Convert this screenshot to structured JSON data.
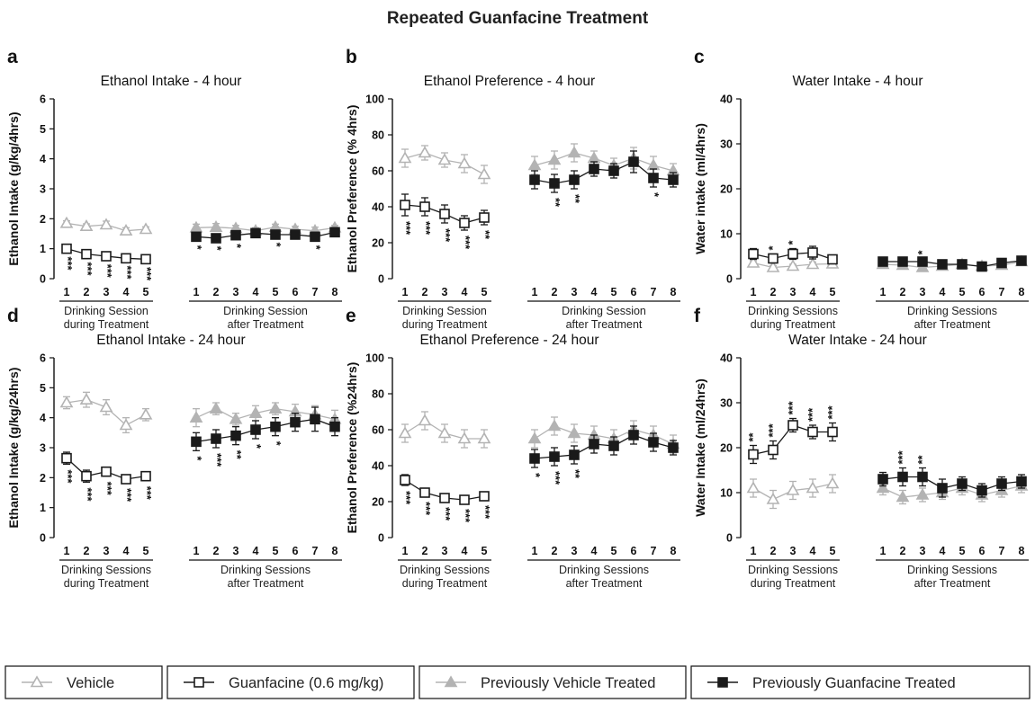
{
  "figure_title": "Repeated Guanfacine Treatment",
  "legend": [
    {
      "name": "Vehicle",
      "icon": "open-triangle-icon",
      "color": "#b3b3b3"
    },
    {
      "name": "Guanfacine (0.6 mg/kg)",
      "icon": "open-square-icon",
      "color": "#1a1a1a"
    },
    {
      "name": "Previously Vehicle Treated",
      "icon": "filled-triangle-icon",
      "color": "#b3b3b3"
    },
    {
      "name": "Previously Guanfacine Treated",
      "icon": "filled-square-icon",
      "color": "#1a1a1a"
    }
  ],
  "chart_data": [
    {
      "panel": "a",
      "type": "line",
      "title": "Ethanol Intake - 4 hour",
      "ylabel": "Ethanol Intake (g/kg/4hrs)",
      "ylim": [
        0,
        6
      ],
      "yticks": [
        0,
        1,
        2,
        3,
        4,
        5,
        6
      ],
      "group_labels": [
        [
          "Drinking Session",
          "during Treatment"
        ],
        [
          "Drinking Session",
          "after Treatment"
        ]
      ],
      "during": {
        "x": [
          "1",
          "2",
          "3",
          "4",
          "5"
        ],
        "series": [
          {
            "name": "Vehicle",
            "values": [
              1.85,
              1.75,
              1.8,
              1.6,
              1.65
            ],
            "err": [
              0.08,
              0.08,
              0.12,
              0.1,
              0.08
            ]
          },
          {
            "name": "Guanfacine (0.6 mg/kg)",
            "values": [
              1.0,
              0.82,
              0.75,
              0.68,
              0.65
            ],
            "err": [
              0.08,
              0.08,
              0.08,
              0.06,
              0.08
            ],
            "sig": [
              "***",
              "***",
              "***",
              "***",
              "***"
            ]
          }
        ]
      },
      "after": {
        "x": [
          "1",
          "2",
          "3",
          "4",
          "5",
          "6",
          "7",
          "8"
        ],
        "series": [
          {
            "name": "Previously Vehicle Treated",
            "values": [
              1.7,
              1.72,
              1.68,
              1.6,
              1.72,
              1.65,
              1.6,
              1.7
            ],
            "err": [
              0.12,
              0.12,
              0.1,
              0.1,
              0.1,
              0.1,
              0.12,
              0.08
            ]
          },
          {
            "name": "Previously Guanfacine Treated",
            "values": [
              1.4,
              1.35,
              1.45,
              1.52,
              1.47,
              1.47,
              1.4,
              1.55
            ],
            "err": [
              0.1,
              0.08,
              0.1,
              0.08,
              0.08,
              0.08,
              0.1,
              0.08
            ],
            "sig": [
              "*",
              "*",
              "*",
              "",
              "*",
              "",
              "*",
              ""
            ]
          }
        ]
      }
    },
    {
      "panel": "b",
      "type": "line",
      "title": "Ethanol Preference - 4 hour",
      "ylabel": "Ethanol Preference (% 4hrs)",
      "ylim": [
        0,
        100
      ],
      "yticks": [
        0,
        20,
        40,
        60,
        80,
        100
      ],
      "group_labels": [
        [
          "Drinking Session",
          "during Treatment"
        ],
        [
          "Drinking Session",
          "after Treatment"
        ]
      ],
      "during": {
        "x": [
          "1",
          "2",
          "3",
          "4",
          "5"
        ],
        "series": [
          {
            "name": "Vehicle",
            "values": [
              67,
              70,
              66,
              64,
              58
            ],
            "err": [
              5,
              4,
              4,
              5,
              5
            ]
          },
          {
            "name": "Guanfacine (0.6 mg/kg)",
            "values": [
              41,
              40,
              36,
              31,
              34
            ],
            "err": [
              6,
              5,
              5,
              4,
              4
            ],
            "sig": [
              "***",
              "***",
              "***",
              "***",
              "**"
            ]
          }
        ]
      },
      "after": {
        "x": [
          "1",
          "2",
          "3",
          "4",
          "5",
          "6",
          "7",
          "8"
        ],
        "series": [
          {
            "name": "Previously Vehicle Treated",
            "values": [
              63,
              66,
              70,
              67,
              63,
              67,
              63,
              60
            ],
            "err": [
              5,
              5,
              5,
              4,
              4,
              6,
              5,
              4
            ]
          },
          {
            "name": "Previously Guanfacine Treated",
            "values": [
              55,
              53,
              55,
              61,
              60,
              65,
              56,
              55
            ],
            "err": [
              5,
              5,
              5,
              4,
              4,
              6,
              5,
              4
            ],
            "sig": [
              "",
              "**",
              "**",
              "",
              "",
              "",
              "*",
              ""
            ]
          }
        ]
      }
    },
    {
      "panel": "c",
      "type": "line",
      "title": "Water Intake - 4 hour",
      "ylabel": "Water intake (ml/4hrs)",
      "ylim": [
        0,
        40
      ],
      "yticks": [
        0,
        10,
        20,
        30,
        40
      ],
      "group_labels": [
        [
          "Drinking Sessions",
          "during Treatment"
        ],
        [
          "Drinking Sessions",
          "after Treatment"
        ]
      ],
      "during": {
        "x": [
          "1",
          "2",
          "3",
          "4",
          "5"
        ],
        "series": [
          {
            "name": "Vehicle",
            "values": [
              3.5,
              2.5,
              2.8,
              3.2,
              3.3
            ],
            "err": [
              0.5,
              0.4,
              0.4,
              0.5,
              0.4
            ]
          },
          {
            "name": "Guanfacine (0.6 mg/kg)",
            "values": [
              5.5,
              4.5,
              5.5,
              5.8,
              4.3
            ],
            "err": [
              1.2,
              1.0,
              1.2,
              1.4,
              0.5
            ],
            "sig_above": [
              "",
              "*",
              "*",
              "",
              ""
            ]
          }
        ]
      },
      "after": {
        "x": [
          "1",
          "2",
          "3",
          "4",
          "5",
          "6",
          "7",
          "8"
        ],
        "series": [
          {
            "name": "Previously Vehicle Treated",
            "values": [
              3.2,
              3.0,
              2.5,
              2.8,
              3.2,
              2.8,
              3.0,
              3.8
            ],
            "err": [
              0.5,
              0.4,
              0.4,
              0.4,
              0.4,
              0.4,
              0.4,
              0.4
            ]
          },
          {
            "name": "Previously Guanfacine Treated",
            "values": [
              3.8,
              3.8,
              3.8,
              3.2,
              3.2,
              2.7,
              3.5,
              4.0
            ],
            "err": [
              0.5,
              0.6,
              0.7,
              0.4,
              0.4,
              0.4,
              0.4,
              0.4
            ],
            "sig_above": [
              "",
              "",
              "*",
              "",
              "",
              "",
              "",
              ""
            ]
          }
        ]
      }
    },
    {
      "panel": "d",
      "type": "line",
      "title": "Ethanol Intake - 24 hour",
      "ylabel": "Ethanol Intake (g/kg/24hrs)",
      "ylim": [
        0,
        6
      ],
      "yticks": [
        0,
        1,
        2,
        3,
        4,
        5,
        6
      ],
      "group_labels": [
        [
          "Drinking Sessions",
          "during Treatment"
        ],
        [
          "Drinking Sessions",
          "after Treatment"
        ]
      ],
      "during": {
        "x": [
          "1",
          "2",
          "3",
          "4",
          "5"
        ],
        "series": [
          {
            "name": "Vehicle",
            "values": [
              4.5,
              4.6,
              4.35,
              3.75,
              4.1
            ],
            "err": [
              0.2,
              0.25,
              0.25,
              0.25,
              0.2
            ]
          },
          {
            "name": "Guanfacine (0.6 mg/kg)",
            "values": [
              2.65,
              2.05,
              2.2,
              1.95,
              2.05
            ],
            "err": [
              0.2,
              0.2,
              0.15,
              0.12,
              0.15
            ],
            "sig": [
              "***",
              "***",
              "***",
              "***",
              "***"
            ]
          }
        ]
      },
      "after": {
        "x": [
          "1",
          "2",
          "3",
          "4",
          "5",
          "6",
          "7",
          "8"
        ],
        "series": [
          {
            "name": "Previously Vehicle Treated",
            "values": [
              4.0,
              4.3,
              3.95,
              4.15,
              4.3,
              4.2,
              4.1,
              3.95
            ],
            "err": [
              0.3,
              0.2,
              0.2,
              0.25,
              0.2,
              0.25,
              0.3,
              0.3
            ]
          },
          {
            "name": "Previously Guanfacine Treated",
            "values": [
              3.2,
              3.3,
              3.4,
              3.6,
              3.7,
              3.85,
              3.95,
              3.7
            ],
            "err": [
              0.3,
              0.3,
              0.3,
              0.3,
              0.3,
              0.3,
              0.4,
              0.3
            ],
            "sig": [
              "*",
              "***",
              "**",
              "*",
              "*",
              "",
              "",
              ""
            ]
          }
        ]
      }
    },
    {
      "panel": "e",
      "type": "line",
      "title": "Ethanol Preference - 24 hour",
      "ylabel": "Ethanol Preference (%24hrs)",
      "ylim": [
        0,
        100
      ],
      "yticks": [
        0,
        20,
        40,
        60,
        80,
        100
      ],
      "group_labels": [
        [
          "Drinking Sessions",
          "during Treatment"
        ],
        [
          "Drinking Sessions",
          "after Treatment"
        ]
      ],
      "during": {
        "x": [
          "1",
          "2",
          "3",
          "4",
          "5"
        ],
        "series": [
          {
            "name": "Vehicle",
            "values": [
              58,
              65,
              58,
              55,
              55
            ],
            "err": [
              5,
              5,
              5,
              5,
              5
            ]
          },
          {
            "name": "Guanfacine (0.6 mg/kg)",
            "values": [
              32,
              25,
              22,
              21,
              23
            ],
            "err": [
              3,
              2,
              2,
              2,
              2
            ],
            "sig": [
              "***",
              "***",
              "***",
              "***",
              "***"
            ]
          }
        ]
      },
      "after": {
        "x": [
          "1",
          "2",
          "3",
          "4",
          "5",
          "6",
          "7",
          "8"
        ],
        "series": [
          {
            "name": "Previously Vehicle Treated",
            "values": [
              55,
              62,
              58,
              57,
              55,
              60,
              57,
              52
            ],
            "err": [
              5,
              5,
              5,
              5,
              5,
              5,
              5,
              5
            ]
          },
          {
            "name": "Previously Guanfacine Treated",
            "values": [
              44,
              45,
              46,
              52,
              51,
              57,
              53,
              50
            ],
            "err": [
              5,
              5,
              5,
              5,
              5,
              5,
              5,
              4
            ],
            "sig": [
              "*",
              "***",
              "**",
              "",
              "",
              "",
              "",
              ""
            ]
          }
        ]
      }
    },
    {
      "panel": "f",
      "type": "line",
      "title": "Water Intake - 24 hour",
      "ylabel": "Water Intake (ml/24hrs)",
      "ylim": [
        0,
        40
      ],
      "yticks": [
        0,
        10,
        20,
        30,
        40
      ],
      "group_labels": [
        [
          "Drinking Sessions",
          "during Treatment"
        ],
        [
          "Drinking Sessions",
          "after Treatment"
        ]
      ],
      "during": {
        "x": [
          "1",
          "2",
          "3",
          "4",
          "5"
        ],
        "series": [
          {
            "name": "Vehicle",
            "values": [
              11,
              8.5,
              10.5,
              11,
              12
            ],
            "err": [
              2,
              2,
              2,
              2,
              2
            ]
          },
          {
            "name": "Guanfacine (0.6 mg/kg)",
            "values": [
              18.5,
              19.5,
              25,
              23.5,
              23.5
            ],
            "err": [
              2,
              2,
              1.5,
              1.5,
              2
            ],
            "sig_above": [
              "**",
              "***",
              "***",
              "***",
              "***"
            ]
          }
        ]
      },
      "after": {
        "x": [
          "1",
          "2",
          "3",
          "4",
          "5",
          "6",
          "7",
          "8"
        ],
        "series": [
          {
            "name": "Previously Vehicle Treated",
            "values": [
              11,
              9,
              9.5,
              10,
              11,
              9.5,
              10.5,
              11.5
            ],
            "err": [
              1.5,
              1.5,
              1.5,
              1.5,
              1.5,
              1.5,
              1.5,
              1.5
            ]
          },
          {
            "name": "Previously Guanfacine Treated",
            "values": [
              13,
              13.5,
              13.5,
              11,
              12,
              10.5,
              12,
              12.5
            ],
            "err": [
              1.5,
              2,
              2,
              2,
              1.5,
              1.5,
              1.5,
              1.5
            ],
            "sig_above": [
              "",
              "***",
              "**",
              "",
              "",
              "",
              "",
              ""
            ]
          }
        ]
      }
    }
  ]
}
